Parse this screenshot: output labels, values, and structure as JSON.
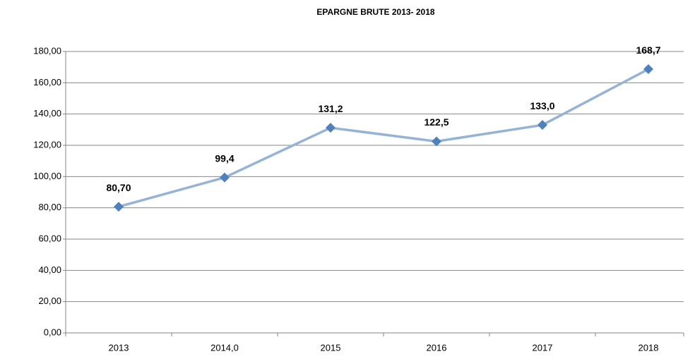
{
  "chart_data": {
    "type": "line",
    "title": "EPARGNE BRUTE 2013- 2018",
    "categories": [
      "2013",
      "2014,0",
      "2015",
      "2016",
      "2017",
      "2018"
    ],
    "values": [
      80.7,
      99.4,
      131.2,
      122.5,
      133.0,
      168.7
    ],
    "value_labels": [
      "80,70",
      "99,4",
      "131,2",
      "122,5",
      "133,0",
      "168,7"
    ],
    "line_color": "#95b3d7",
    "marker_color": "#4f81bd",
    "ylim": [
      0,
      180
    ],
    "yticks": [
      {
        "value": 0,
        "label": "0,00"
      },
      {
        "value": 20,
        "label": "20,00"
      },
      {
        "value": 40,
        "label": "40,00"
      },
      {
        "value": 60,
        "label": "60,00"
      },
      {
        "value": 80,
        "label": "80,00"
      },
      {
        "value": 100,
        "label": "100,00"
      },
      {
        "value": 120,
        "label": "120,00"
      },
      {
        "value": 140,
        "label": "140,00"
      },
      {
        "value": 160,
        "label": "160,00"
      },
      {
        "value": 180,
        "label": "180,00"
      }
    ],
    "grid": true
  }
}
